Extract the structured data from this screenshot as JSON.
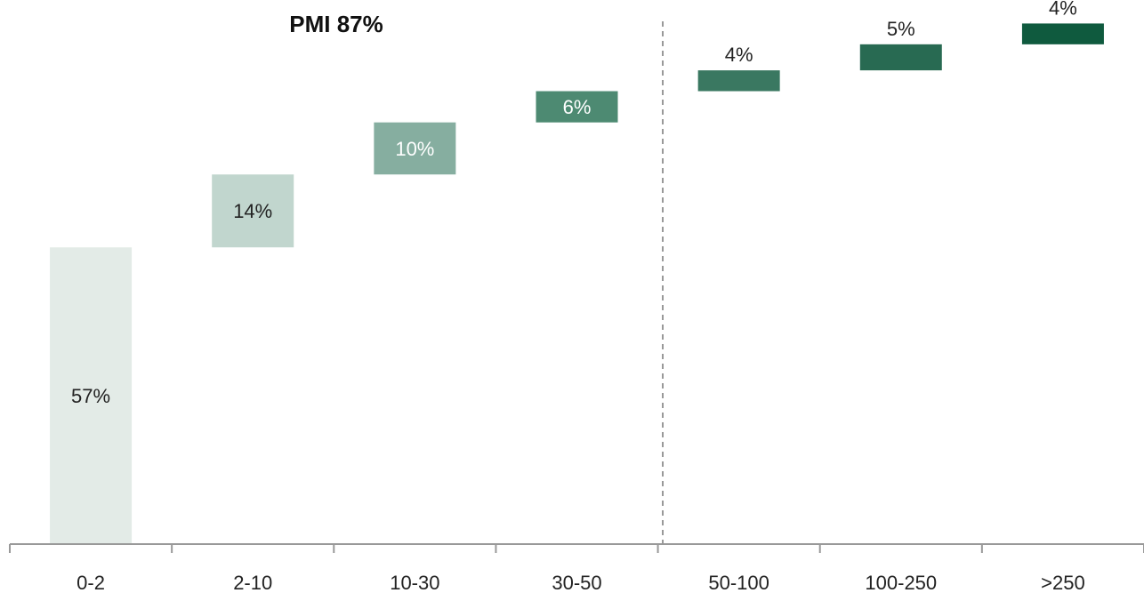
{
  "chart_data": {
    "type": "bar",
    "subtype": "waterfall",
    "categories": [
      "0-2",
      "2-10",
      "10-30",
      "30-50",
      "50-100",
      "100-250",
      ">250"
    ],
    "values": [
      57,
      14,
      10,
      6,
      4,
      5,
      4
    ],
    "labels": [
      "57%",
      "14%",
      "10%",
      "6%",
      "4%",
      "5%",
      "4%"
    ],
    "colors": [
      "#e3ebe7",
      "#c1d6ce",
      "#86aea0",
      "#4d8a72",
      "#3a7861",
      "#286a52",
      "#0f5a3e"
    ],
    "label_colors": [
      "#222222",
      "#222222",
      "#ffffff",
      "#ffffff",
      "#222222",
      "#222222",
      "#222222"
    ],
    "label_placement": [
      "inside",
      "inside",
      "inside",
      "inside",
      "above",
      "above",
      "above"
    ],
    "annotation": {
      "text": "PMI 87%",
      "divider_after_category": "30-50"
    },
    "ylim": [
      0,
      104
    ],
    "grid": false,
    "legend": "none",
    "axis_color": "#999999",
    "divider_color": "#999999"
  }
}
